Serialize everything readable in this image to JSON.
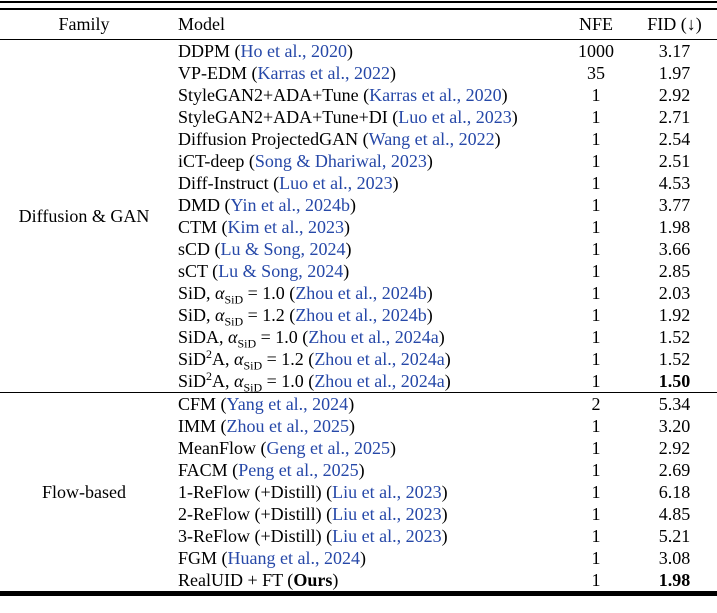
{
  "header": {
    "family": "Family",
    "model": "Model",
    "nfe": "NFE",
    "fid": "FID (↓)"
  },
  "colors": {
    "citation_link": "#2648a8",
    "text": "#000000",
    "rule": "#000000",
    "background": "#ffffff"
  },
  "groups": [
    {
      "family": "Diffusion & GAN",
      "rows": [
        {
          "pre": "DDPM (",
          "cite": "Ho et al., 2020",
          "post": ")",
          "nfe": "1000",
          "fid": "3.17"
        },
        {
          "pre": "VP-EDM (",
          "cite": "Karras et al., 2022",
          "post": ")",
          "nfe": "35",
          "fid": "1.97"
        },
        {
          "pre": "StyleGAN2+ADA+Tune (",
          "cite": "Karras et al., 2020",
          "post": ")",
          "nfe": "1",
          "fid": "2.92"
        },
        {
          "pre": "StyleGAN2+ADA+Tune+DI (",
          "cite": "Luo et al., 2023",
          "post": ")",
          "nfe": "1",
          "fid": "2.71"
        },
        {
          "pre": "Diffusion ProjectedGAN (",
          "cite": "Wang et al., 2022",
          "post": ")",
          "nfe": "1",
          "fid": "2.54"
        },
        {
          "pre": "iCT-deep (",
          "cite": "Song & Dhariwal, 2023",
          "post": ")",
          "nfe": "1",
          "fid": "2.51"
        },
        {
          "pre": "Diff-Instruct (",
          "cite": "Luo et al., 2023",
          "post": ")",
          "nfe": "1",
          "fid": "4.53"
        },
        {
          "pre": "DMD (",
          "cite": "Yin et al., 2024b",
          "post": ")",
          "nfe": "1",
          "fid": "3.77"
        },
        {
          "pre": "CTM (",
          "cite": "Kim et al., 2023",
          "post": ")",
          "nfe": "1",
          "fid": "1.98"
        },
        {
          "pre": "sCD (",
          "cite": "Lu & Song, 2024",
          "post": ")",
          "nfe": "1",
          "fid": "3.66"
        },
        {
          "pre": "sCT (",
          "cite": "Lu & Song, 2024",
          "post": ")",
          "nfe": "1",
          "fid": "2.85"
        },
        {
          "pre": "SiD, ",
          "alpha": "α",
          "asub": "SiD",
          "eq": " = 1.0 (",
          "cite": "Zhou et al., 2024b",
          "post": ")",
          "nfe": "1",
          "fid": "2.03"
        },
        {
          "pre": "SiD, ",
          "alpha": "α",
          "asub": "SiD",
          "eq": " = 1.2 (",
          "cite": "Zhou et al., 2024b",
          "post": ")",
          "nfe": "1",
          "fid": "1.92"
        },
        {
          "pre": "SiDA, ",
          "alpha": "α",
          "asub": "SiD",
          "eq": " = 1.0 (",
          "cite": "Zhou et al., 2024a",
          "post": ")",
          "nfe": "1",
          "fid": "1.52"
        },
        {
          "pre": "SiD",
          "sup": "2",
          "mid": "A, ",
          "alpha": "α",
          "asub": "SiD",
          "eq": " = 1.2 (",
          "cite": "Zhou et al., 2024a",
          "post": ")",
          "nfe": "1",
          "fid": "1.52"
        },
        {
          "pre": "SiD",
          "sup": "2",
          "mid": "A, ",
          "alpha": "α",
          "asub": "SiD",
          "eq": " = 1.0 (",
          "cite": "Zhou et al., 2024a",
          "post": ")",
          "nfe": "1",
          "fid": "1.50",
          "fid_bold": true
        }
      ]
    },
    {
      "family": "Flow-based",
      "rows": [
        {
          "pre": "CFM (",
          "cite": "Yang et al., 2024",
          "post": ")",
          "nfe": "2",
          "fid": "5.34"
        },
        {
          "pre": "IMM (",
          "cite": "Zhou et al., 2025",
          "post": ")",
          "nfe": "1",
          "fid": "3.20"
        },
        {
          "pre": "MeanFlow (",
          "cite": "Geng et al., 2025",
          "post": ")",
          "nfe": "1",
          "fid": "2.92"
        },
        {
          "pre": "FACM (",
          "cite": "Peng et al., 2025",
          "post": ")",
          "nfe": "1",
          "fid": "2.69"
        },
        {
          "pre": "1-ReFlow (+Distill) (",
          "cite": "Liu et al., 2023",
          "post": ")",
          "nfe": "1",
          "fid": "6.18"
        },
        {
          "pre": "2-ReFlow (+Distill) (",
          "cite": "Liu et al., 2023",
          "post": ")",
          "nfe": "1",
          "fid": "4.85"
        },
        {
          "pre": "3-ReFlow (+Distill) (",
          "cite": "Liu et al., 2023",
          "post": ")",
          "nfe": "1",
          "fid": "5.21"
        },
        {
          "pre": "FGM (",
          "cite": "Huang et al., 2024",
          "post": ")",
          "nfe": "1",
          "fid": "3.08"
        },
        {
          "pre": "RealUID + FT (",
          "ours": "Ours",
          "post": ")",
          "nfe": "1",
          "fid": "1.98",
          "fid_bold": true
        }
      ]
    }
  ]
}
